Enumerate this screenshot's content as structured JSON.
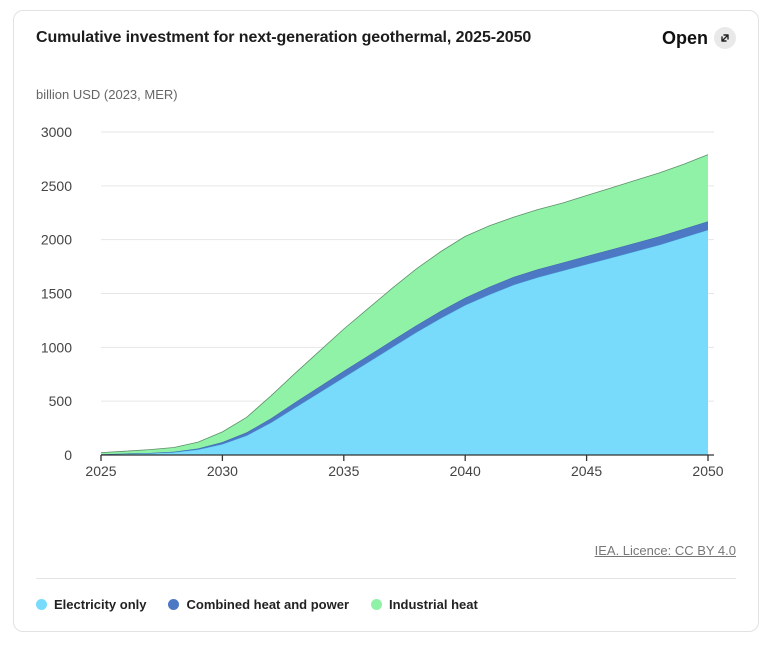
{
  "header": {
    "title": "Cumulative investment for next-generation geothermal, 2025-2050",
    "open_label": "Open"
  },
  "icons": {
    "open": "external-link-icon"
  },
  "footer": {
    "licence": "IEA. Licence: CC BY 4.0"
  },
  "colors": {
    "electricity": "#79dbfc",
    "chp": "#4d78c4",
    "industrial": "#8ff2a7",
    "grid": "#e6e6e6",
    "axis": "#333333"
  },
  "chart_data": {
    "type": "area",
    "stacked": true,
    "ylabel": "billion USD (2023, MER)",
    "ylim": [
      0,
      3000
    ],
    "xlim": [
      2025,
      2050
    ],
    "y_ticks": [
      0,
      500,
      1000,
      1500,
      2000,
      2500,
      3000
    ],
    "x_ticks": [
      2025,
      2030,
      2035,
      2040,
      2045,
      2050
    ],
    "grid": true,
    "legend_position": "bottom",
    "x": [
      2025,
      2026,
      2027,
      2028,
      2029,
      2030,
      2031,
      2032,
      2033,
      2034,
      2035,
      2036,
      2037,
      2038,
      2039,
      2040,
      2041,
      2042,
      2043,
      2044,
      2045,
      2046,
      2047,
      2048,
      2049,
      2050
    ],
    "series": [
      {
        "name": "Electricity only",
        "values": [
          5,
          10,
          15,
          25,
          50,
          100,
          180,
          300,
          440,
          580,
          720,
          860,
          1000,
          1140,
          1270,
          1390,
          1490,
          1580,
          1650,
          1710,
          1770,
          1830,
          1890,
          1950,
          2020,
          2090
        ]
      },
      {
        "name": "Combined heat and power",
        "values": [
          2,
          3,
          4,
          5,
          10,
          20,
          30,
          40,
          50,
          55,
          60,
          62,
          64,
          66,
          68,
          70,
          72,
          74,
          75,
          76,
          77,
          78,
          79,
          80,
          80,
          80
        ]
      },
      {
        "name": "Industrial heat",
        "values": [
          15,
          22,
          31,
          40,
          60,
          95,
          140,
          210,
          270,
          330,
          390,
          438,
          486,
          524,
          552,
          570,
          568,
          556,
          555,
          554,
          563,
          572,
          581,
          590,
          600,
          620
        ]
      }
    ]
  }
}
